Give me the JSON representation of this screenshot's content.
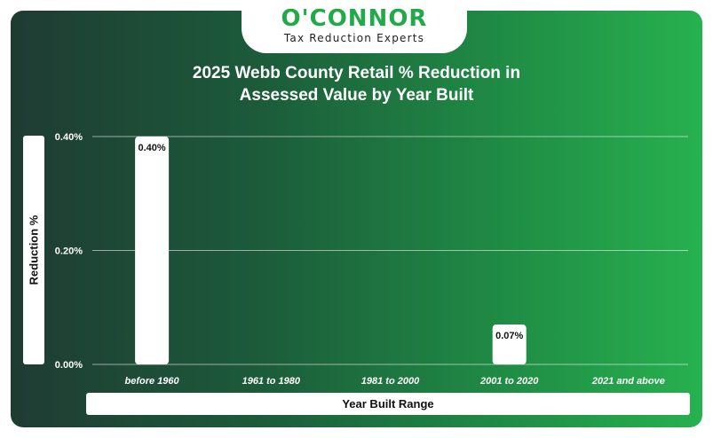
{
  "brand": {
    "name": "O'CONNOR",
    "tagline": "Tax Reduction Experts"
  },
  "colors": {
    "brand_green": "#22a94a",
    "bar": "#ffffff",
    "background_dark": "#1f3b33",
    "background_light": "#27b14f"
  },
  "chart_data": {
    "type": "bar",
    "title": "2025 Webb County Retail % Reduction in Assessed Value by Year Built",
    "title_lines": [
      "2025 Webb County Retail % Reduction in",
      "Assessed Value by Year Built"
    ],
    "xlabel": "Year Built Range",
    "ylabel": "Reduction %",
    "categories": [
      "before 1960",
      "1961 to 1980",
      "1981 to 2000",
      "2001 to 2020",
      "2021 and above"
    ],
    "values": [
      0.4,
      null,
      null,
      0.07,
      null
    ],
    "data_labels": [
      "0.40%",
      "",
      "",
      "0.07%",
      ""
    ],
    "yticks": [
      0,
      0.2,
      0.4
    ],
    "ytick_labels": [
      "0.00%",
      "0.20%",
      "0.40%"
    ],
    "ylim": [
      0,
      0.4
    ],
    "grid": true,
    "legend": "none"
  }
}
